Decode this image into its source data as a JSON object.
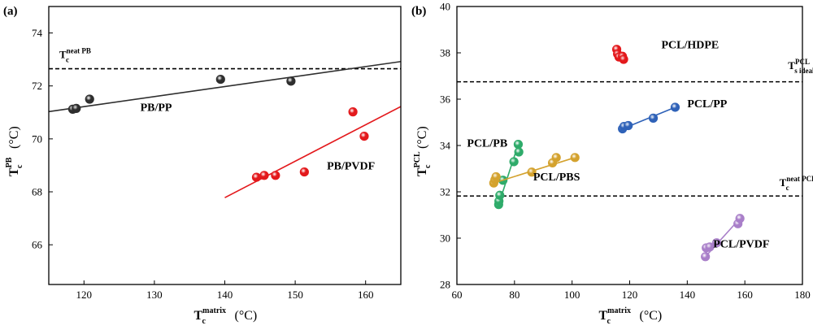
{
  "chart_data": [
    {
      "panel": "(a)",
      "type": "scatter",
      "xlabel": {
        "main": "T",
        "sub": "c",
        "sup": "matrix",
        "unit": " (°C)"
      },
      "ylabel": {
        "main": "T",
        "sub": "c",
        "sup": "PB",
        "unit": " (°C)"
      },
      "xlim": [
        115,
        165
      ],
      "ylim": [
        64.5,
        75
      ],
      "xticks": [
        120,
        130,
        140,
        150,
        160
      ],
      "yticks": [
        66,
        68,
        70,
        72,
        74
      ],
      "reference_lines": [
        {
          "y": 72.65,
          "main": "T",
          "sub": "c",
          "sup": "neat PB",
          "style": "dashed",
          "label_x": 116.5,
          "label_y": 73.05
        }
      ],
      "series": [
        {
          "name": "PB/PP",
          "color": "#2e2e2e",
          "label_x": 128,
          "label_y": 71.05,
          "points": [
            [
              118.4,
              71.12
            ],
            [
              118.9,
              71.15
            ],
            [
              120.8,
              71.5
            ],
            [
              139.4,
              72.25
            ],
            [
              149.4,
              72.18
            ]
          ],
          "fit": [
            [
              115,
              71.03
            ],
            [
              165,
              72.92
            ]
          ]
        },
        {
          "name": "PB/PVDF",
          "color": "#e3191c",
          "label_x": 154.5,
          "label_y": 68.85,
          "points": [
            [
              144.5,
              68.55
            ],
            [
              145.6,
              68.62
            ],
            [
              147.2,
              68.62
            ],
            [
              151.3,
              68.75
            ],
            [
              158.2,
              71.02
            ],
            [
              159.8,
              70.1
            ]
          ],
          "fit": [
            [
              140,
              67.78
            ],
            [
              165,
              71.22
            ]
          ]
        }
      ]
    },
    {
      "panel": "(b)",
      "type": "scatter",
      "xlabel": {
        "main": "T",
        "sub": "c",
        "sup": "matrix",
        "unit": " (°C)"
      },
      "ylabel": {
        "main": "T",
        "sub": "c",
        "sup": "PCL",
        "unit": " (°C)"
      },
      "xlim": [
        60,
        180
      ],
      "ylim": [
        28,
        40
      ],
      "xticks": [
        60,
        80,
        100,
        120,
        140,
        160,
        180
      ],
      "yticks": [
        28,
        30,
        32,
        34,
        36,
        38,
        40
      ],
      "reference_lines": [
        {
          "y": 36.75,
          "main": "T",
          "sub": "s ideal",
          "sup": "PCL",
          "style": "dashed",
          "label_x": 175,
          "label_y": 37.3
        },
        {
          "y": 31.82,
          "main": "T",
          "sub": "c",
          "sup": "neat PCL",
          "style": "dashed",
          "label_x": 172,
          "label_y": 32.25
        }
      ],
      "series": [
        {
          "name": "PCL/HDPE",
          "color": "#e3191c",
          "label_x": 131,
          "label_y": 38.2,
          "points": [
            [
              115.5,
              38.15
            ],
            [
              115.8,
              37.95
            ],
            [
              116.3,
              37.82
            ],
            [
              117.5,
              37.85
            ],
            [
              117.9,
              37.72
            ]
          ],
          "fit": null
        },
        {
          "name": "PCL/PP",
          "color": "#2f62b8",
          "label_x": 140,
          "label_y": 35.65,
          "points": [
            [
              117.5,
              34.72
            ],
            [
              118.0,
              34.82
            ],
            [
              119.5,
              34.86
            ],
            [
              128.2,
              35.18
            ],
            [
              135.8,
              35.65
            ]
          ],
          "fit": [
            [
              117.5,
              34.72
            ],
            [
              135.8,
              35.65
            ]
          ]
        },
        {
          "name": "PCL/PB",
          "color": "#2eab6a",
          "label_x": 63.5,
          "label_y": 33.95,
          "points": [
            [
              74.5,
              31.45
            ],
            [
              74.6,
              31.6
            ],
            [
              74.9,
              31.85
            ],
            [
              76.0,
              32.5
            ],
            [
              79.8,
              33.3
            ],
            [
              81.5,
              33.72
            ],
            [
              81.3,
              34.05
            ]
          ],
          "fit": [
            [
              74.5,
              31.45
            ],
            [
              81.3,
              34.05
            ]
          ]
        },
        {
          "name": "PCL/PBS",
          "color": "#d4a22e",
          "label_x": 86.5,
          "label_y": 32.5,
          "points": [
            [
              72.8,
              32.38
            ],
            [
              73.2,
              32.52
            ],
            [
              73.6,
              32.65
            ],
            [
              86.0,
              32.85
            ],
            [
              93.2,
              33.25
            ],
            [
              94.5,
              33.48
            ],
            [
              101.0,
              33.48
            ]
          ],
          "fit": [
            [
              72.8,
              32.38
            ],
            [
              101.0,
              33.48
            ]
          ]
        },
        {
          "name": "PCL/PVDF",
          "color": "#a97fc9",
          "label_x": 149,
          "label_y": 29.6,
          "points": [
            [
              146.3,
              29.2
            ],
            [
              146.6,
              29.58
            ],
            [
              147.8,
              29.62
            ],
            [
              150.2,
              29.8
            ],
            [
              157.6,
              30.62
            ],
            [
              158.3,
              30.85
            ]
          ],
          "fit": [
            [
              146.3,
              29.2
            ],
            [
              158.3,
              30.85
            ]
          ]
        }
      ]
    }
  ]
}
